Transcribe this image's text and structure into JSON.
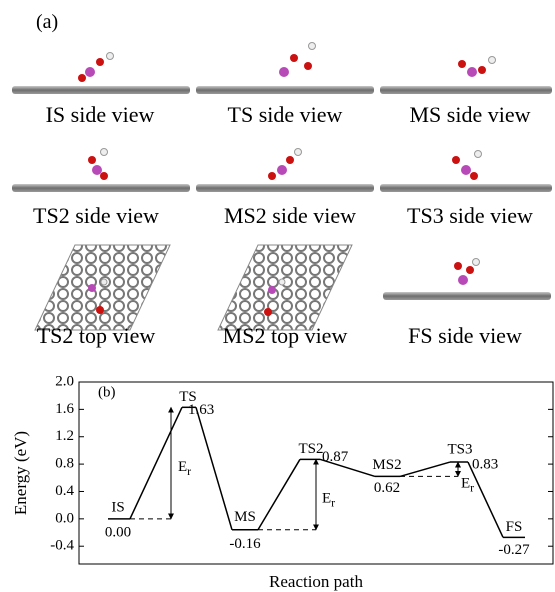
{
  "panel_a": {
    "label": "(a)",
    "views": [
      "IS side view",
      "TS side view",
      "MS side view",
      "TS2 side view",
      "MS2 side view",
      "TS3 side view",
      "TS2 top view",
      "MS2 top view",
      "FS side view"
    ]
  },
  "chart_data": {
    "type": "line",
    "panel_label": "(b)",
    "y_label": "Energy (eV)",
    "x_label": "Reaction path",
    "categories": [
      "IS",
      "TS",
      "MS",
      "TS2",
      "MS2",
      "TS3",
      "FS"
    ],
    "values": [
      0,
      1.63,
      -0.16,
      0.87,
      0.62,
      0.83,
      -0.27
    ],
    "value_labels": [
      "0.00",
      "1.63",
      "-0.16",
      "0.87",
      "0.62",
      "0.83",
      "-0.27"
    ],
    "color": "#000000",
    "ylim": [
      -0.66,
      2.0
    ],
    "yticks": [
      {
        "value": 2,
        "label": "2.0"
      },
      1.6,
      1.2,
      0.8,
      0.4,
      {
        "value": 0,
        "label": "0.0"
      },
      -0.4
    ],
    "annotations": [
      {
        "base": "E",
        "sub": "r"
      },
      {
        "base": "E",
        "sub": "r"
      },
      {
        "base": "E",
        "sub": "r"
      }
    ]
  }
}
